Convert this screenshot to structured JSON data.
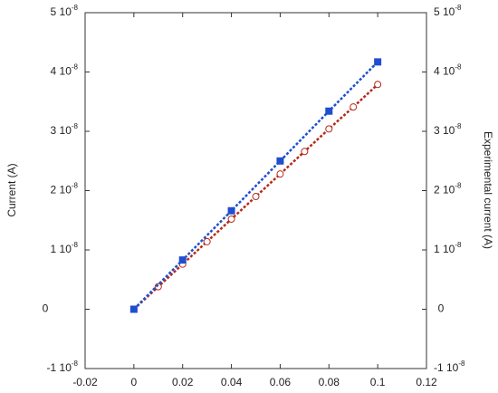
{
  "chart_data": {
    "type": "scatter",
    "x_label": null,
    "y_label": "Current (A)",
    "y2_label": "Experimental current (A)",
    "xlim": [
      -0.02,
      0.12
    ],
    "xticks": [
      -0.02,
      0,
      0.02,
      0.04,
      0.06,
      0.08,
      0.1,
      0.12
    ],
    "ylim": [
      -1e-08,
      5e-08
    ],
    "yticks": [
      {
        "value": -1e-08,
        "label": "-1 10",
        "sup": "-8"
      },
      0,
      {
        "value": 1e-08,
        "label": "1 10",
        "sup": "-8"
      },
      {
        "value": 2e-08,
        "label": "2 10",
        "sup": "-8"
      },
      {
        "value": 3e-08,
        "label": "3 10",
        "sup": "-8"
      },
      {
        "value": 4e-08,
        "label": "4 10",
        "sup": "-8"
      },
      {
        "value": 5e-08,
        "label": "5 10",
        "sup": "-8"
      }
    ],
    "y2lim": [
      -1e-08,
      5e-08
    ],
    "y2ticks": [
      {
        "value": -1e-08,
        "label": "-1 10",
        "sup": "-8"
      },
      0,
      {
        "value": 1e-08,
        "label": "1 10",
        "sup": "-8"
      },
      {
        "value": 2e-08,
        "label": "2 10",
        "sup": "-8"
      },
      {
        "value": 3e-08,
        "label": "3 10",
        "sup": "-8"
      },
      {
        "value": 4e-08,
        "label": "4 10",
        "sup": "-8"
      },
      {
        "value": 5e-08,
        "label": "5 10",
        "sup": "-8"
      }
    ],
    "series": [
      {
        "color": "#1f4fd0",
        "marker": "square",
        "x": [
          0,
          0.02,
          0.04,
          0.06,
          0.08,
          0.1
        ],
        "values": [
          0,
          8.3e-09,
          1.66e-08,
          2.5e-08,
          3.34e-08,
          4.17e-08
        ]
      },
      {
        "color": "#b52a1a",
        "marker": "circle",
        "axis": "y2",
        "x": [
          0,
          0.01,
          0.02,
          0.03,
          0.04,
          0.05,
          0.06,
          0.07,
          0.08,
          0.09,
          0.1
        ],
        "values": [
          0,
          3.8e-09,
          7.6e-09,
          1.14e-08,
          1.52e-08,
          1.9e-08,
          2.28e-08,
          2.66e-08,
          3.04e-08,
          3.41e-08,
          3.79e-08
        ]
      }
    ]
  }
}
